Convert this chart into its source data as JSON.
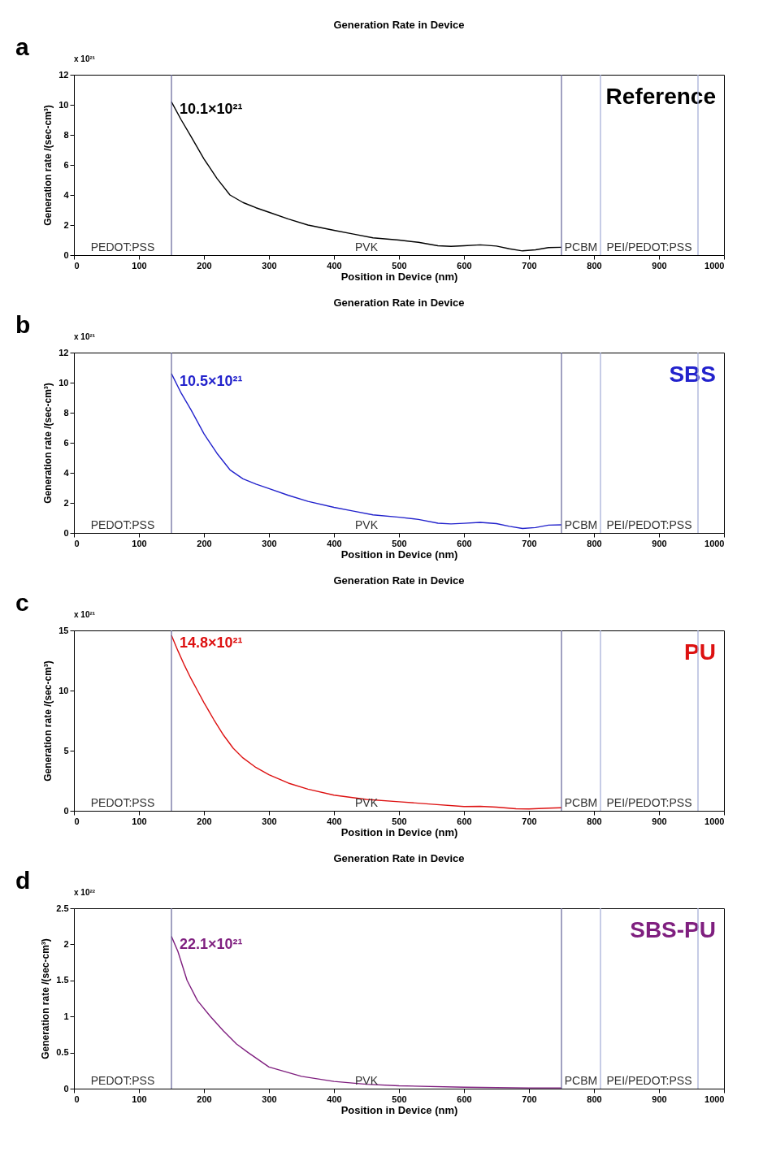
{
  "chart_data": [
    {
      "type": "line",
      "title": "Generation Rate in Device",
      "xlabel": "Position in Device (nm)",
      "ylabel": "Generation rate /(sec-cm³)",
      "xlim": [
        0,
        1000
      ],
      "xticks": [
        0,
        100,
        200,
        300,
        400,
        500,
        600,
        700,
        800,
        900,
        1000
      ],
      "ylim": [
        0,
        12
      ],
      "yticks": [
        0,
        2,
        4,
        6,
        8,
        10,
        12
      ],
      "series": [
        {
          "name": "Reference",
          "color": "#000000",
          "x": [
            150,
            165,
            180,
            200,
            220,
            240,
            260,
            280,
            300,
            330,
            360,
            400,
            430,
            460,
            500,
            530,
            560,
            580,
            600,
            625,
            650,
            670,
            690,
            710,
            730,
            750
          ],
          "values": [
            10.2,
            9.0,
            7.9,
            6.4,
            5.1,
            4.0,
            3.5,
            3.15,
            2.85,
            2.4,
            2.0,
            1.65,
            1.4,
            1.15,
            1.0,
            0.85,
            0.62,
            0.58,
            0.62,
            0.68,
            0.6,
            0.42,
            0.28,
            0.35,
            0.5,
            0.52
          ]
        }
      ],
      "ref_lines": [
        {
          "axis": "x",
          "value": 150,
          "color": "#6f6f9f"
        },
        {
          "axis": "x",
          "value": 750,
          "color": "#6f6f9f"
        },
        {
          "axis": "x",
          "value": 810,
          "color": "#a8b0d8"
        },
        {
          "axis": "x",
          "value": 960,
          "color": "#a8b0d8"
        }
      ],
      "line_style": "solid",
      "annotations": [
        "a",
        "x 10²¹",
        "10.1×10²¹",
        "PEDOT:PSS",
        "PVK",
        "PCBM",
        "PEI/PEDOT:PSS"
      ]
    },
    {
      "type": "line",
      "title": "Generation Rate in Device",
      "xlabel": "Position in Device (nm)",
      "ylabel": "Generation rate /(sec-cm³)",
      "xlim": [
        0,
        1000
      ],
      "xticks": [
        0,
        100,
        200,
        300,
        400,
        500,
        600,
        700,
        800,
        900,
        1000
      ],
      "ylim": [
        0,
        12
      ],
      "yticks": [
        0,
        2,
        4,
        6,
        8,
        10,
        12
      ],
      "series": [
        {
          "name": "SBS",
          "color": "#2222cc",
          "x": [
            150,
            165,
            180,
            200,
            220,
            240,
            260,
            280,
            300,
            330,
            360,
            400,
            430,
            460,
            500,
            530,
            560,
            580,
            600,
            625,
            650,
            670,
            690,
            710,
            730,
            750
          ],
          "values": [
            10.6,
            9.3,
            8.2,
            6.6,
            5.3,
            4.2,
            3.6,
            3.25,
            2.95,
            2.5,
            2.1,
            1.7,
            1.45,
            1.2,
            1.05,
            0.9,
            0.65,
            0.6,
            0.64,
            0.7,
            0.62,
            0.44,
            0.3,
            0.36,
            0.52,
            0.54
          ]
        }
      ],
      "ref_lines": [
        {
          "axis": "x",
          "value": 150,
          "color": "#6f6f9f"
        },
        {
          "axis": "x",
          "value": 750,
          "color": "#6f6f9f"
        },
        {
          "axis": "x",
          "value": 810,
          "color": "#a8b0d8"
        },
        {
          "axis": "x",
          "value": 960,
          "color": "#a8b0d8"
        }
      ],
      "line_style": "solid",
      "annotations": [
        "b",
        "x 10²¹",
        "10.5×10²¹",
        "PEDOT:PSS",
        "PVK",
        "PCBM",
        "PEI/PEDOT:PSS"
      ]
    },
    {
      "type": "line",
      "title": "Generation Rate in Device",
      "xlabel": "Position in Device (nm)",
      "ylabel": "Generation rate /(sec-cm³)",
      "xlim": [
        0,
        1000
      ],
      "xticks": [
        0,
        100,
        200,
        300,
        400,
        500,
        600,
        700,
        800,
        900,
        1000
      ],
      "ylim": [
        0,
        15
      ],
      "yticks": [
        0,
        5,
        10,
        15
      ],
      "series": [
        {
          "name": "PU",
          "color": "#dd1111",
          "x": [
            150,
            160,
            170,
            180,
            190,
            200,
            215,
            230,
            245,
            260,
            280,
            300,
            330,
            360,
            400,
            450,
            500,
            550,
            600,
            625,
            650,
            680,
            700,
            730,
            750
          ],
          "values": [
            14.6,
            13.3,
            12.1,
            11.0,
            10.0,
            9.0,
            7.6,
            6.3,
            5.2,
            4.4,
            3.6,
            3.0,
            2.3,
            1.8,
            1.3,
            0.95,
            0.75,
            0.55,
            0.35,
            0.37,
            0.3,
            0.17,
            0.15,
            0.22,
            0.25
          ]
        }
      ],
      "ref_lines": [
        {
          "axis": "x",
          "value": 150,
          "color": "#6f6f9f"
        },
        {
          "axis": "x",
          "value": 750,
          "color": "#6f6f9f"
        },
        {
          "axis": "x",
          "value": 810,
          "color": "#a8b0d8"
        },
        {
          "axis": "x",
          "value": 960,
          "color": "#a8b0d8"
        }
      ],
      "line_style": "solid",
      "annotations": [
        "c",
        "x 10²¹",
        "14.8×10²¹",
        "PEDOT:PSS",
        "PVK",
        "PCBM",
        "PEI/PEDOT:PSS"
      ]
    },
    {
      "type": "line",
      "title": "Generation Rate in Device",
      "xlabel": "Position in Device (nm)",
      "ylabel": "Generation rate /(sec-cm³)",
      "xlim": [
        0,
        1000
      ],
      "xticks": [
        0,
        100,
        200,
        300,
        400,
        500,
        600,
        700,
        800,
        900,
        1000
      ],
      "ylim": [
        0,
        2.5
      ],
      "yticks": [
        0,
        0.5,
        1,
        1.5,
        2,
        2.5
      ],
      "series": [
        {
          "name": "SBS-PU",
          "color": "#7f1f7f",
          "x": [
            150,
            160,
            174,
            190,
            210,
            230,
            250,
            268,
            300,
            350,
            400,
            450,
            500,
            600,
            700,
            750
          ],
          "values": [
            2.11,
            1.9,
            1.5,
            1.22,
            1.0,
            0.8,
            0.62,
            0.5,
            0.3,
            0.17,
            0.1,
            0.06,
            0.04,
            0.02,
            0.01,
            0.01
          ]
        }
      ],
      "ref_lines": [
        {
          "axis": "x",
          "value": 150,
          "color": "#6f6f9f"
        },
        {
          "axis": "x",
          "value": 750,
          "color": "#6f6f9f"
        },
        {
          "axis": "x",
          "value": 810,
          "color": "#a8b0d8"
        },
        {
          "axis": "x",
          "value": 960,
          "color": "#a8b0d8"
        }
      ],
      "line_style": "solid",
      "annotations": [
        "d",
        "x 10²²",
        "22.1×10²¹",
        "PEDOT:PSS",
        "PVK",
        "PCBM",
        "PEI/PEDOT:PSS"
      ]
    }
  ]
}
